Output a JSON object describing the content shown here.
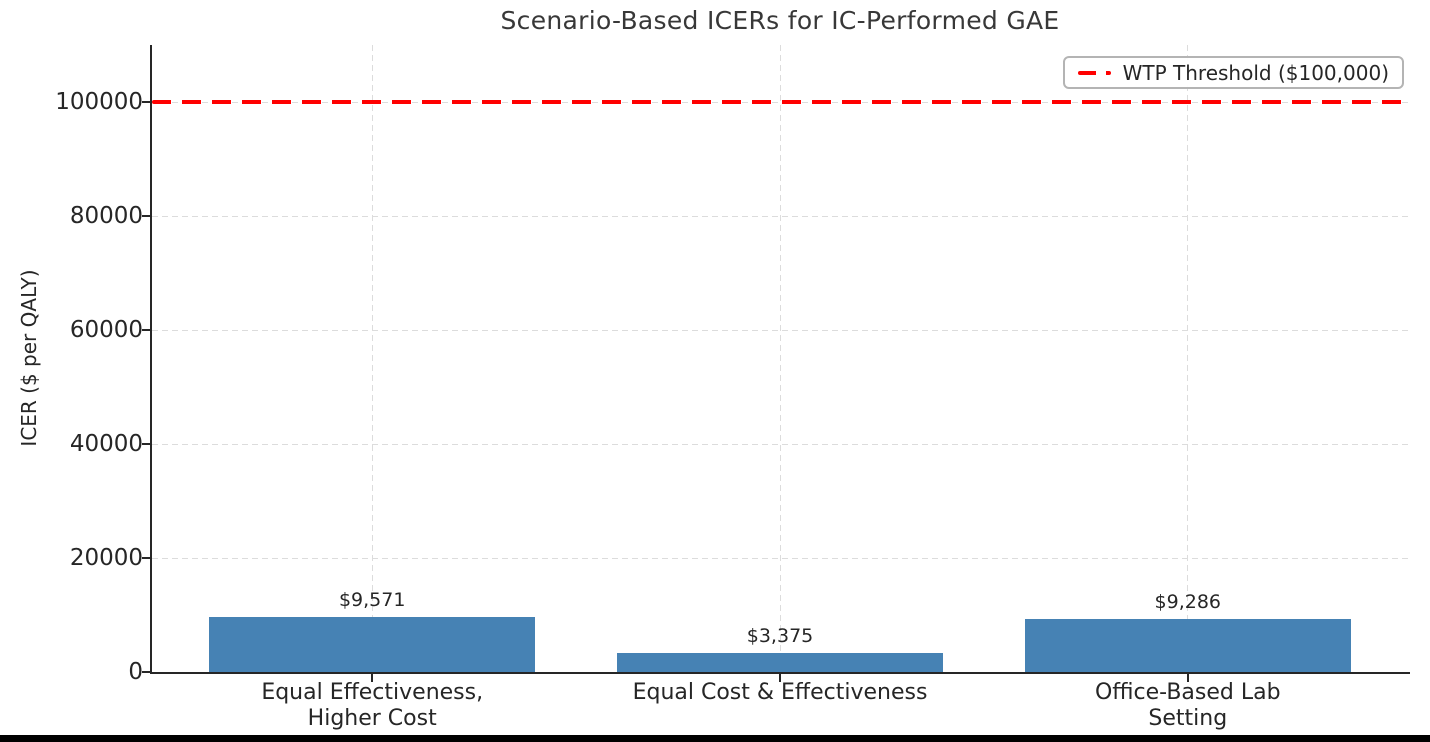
{
  "chart_data": {
    "type": "bar",
    "title": "Scenario-Based ICERs for IC-Performed GAE",
    "ylabel": "ICER ($ per QALY)",
    "xlabel": "",
    "categories": [
      "Equal Effectiveness,\nHigher Cost",
      "Equal Cost & Effectiveness",
      "Office-Based Lab Setting"
    ],
    "values": [
      9571,
      3375,
      9286
    ],
    "value_labels": [
      "$9,571",
      "$3,375",
      "$9,286"
    ],
    "bar_color": "#4682b4",
    "ylim": [
      0,
      110000
    ],
    "yticks": [
      0,
      20000,
      40000,
      60000,
      80000,
      100000
    ],
    "ytick_labels": [
      "0",
      "20000",
      "40000",
      "60000",
      "80000",
      "100000"
    ],
    "grid": true,
    "grid_style": "dashed",
    "legend_position": "upper right",
    "threshold_line": {
      "value": 100000,
      "label": "WTP Threshold ($100,000)",
      "color": "#ff0000",
      "style": "dashed"
    }
  }
}
